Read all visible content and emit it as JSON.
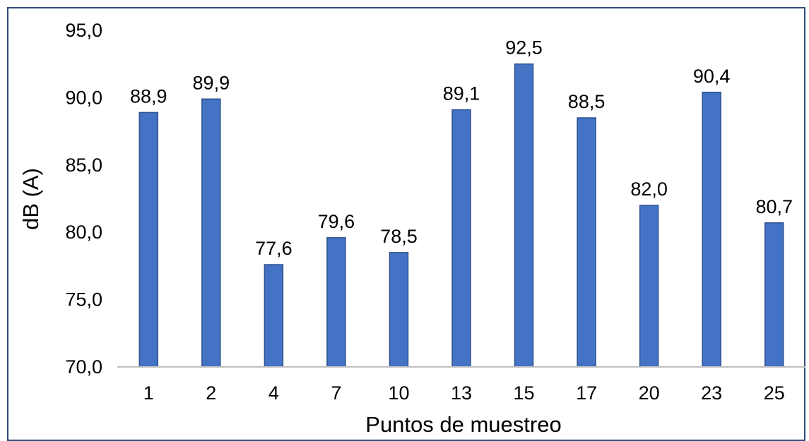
{
  "chart_data": {
    "type": "bar",
    "title": "",
    "xlabel": "Puntos de muestreo",
    "ylabel": "dB (A)",
    "categories": [
      "1",
      "2",
      "4",
      "7",
      "10",
      "13",
      "15",
      "17",
      "20",
      "23",
      "25"
    ],
    "values": [
      88.9,
      89.9,
      77.6,
      79.6,
      78.5,
      89.1,
      92.5,
      88.5,
      82.0,
      90.4,
      80.7
    ],
    "value_labels": [
      "88,9",
      "89,9",
      "77,6",
      "79,6",
      "78,5",
      "89,1",
      "92,5",
      "88,5",
      "82,0",
      "90,4",
      "80,7"
    ],
    "ylim": [
      70,
      95
    ],
    "yticks": [
      70,
      75,
      80,
      85,
      90,
      95
    ],
    "ytick_labels": [
      "70,0",
      "75,0",
      "80,0",
      "85,0",
      "90,0",
      "95,0"
    ],
    "grid": false,
    "legend": "none",
    "colors": {
      "bar": "#4472C4",
      "bar_edge": "#2F528F",
      "axis": "#BFBFBF",
      "frame": "#2F4E7A"
    }
  }
}
